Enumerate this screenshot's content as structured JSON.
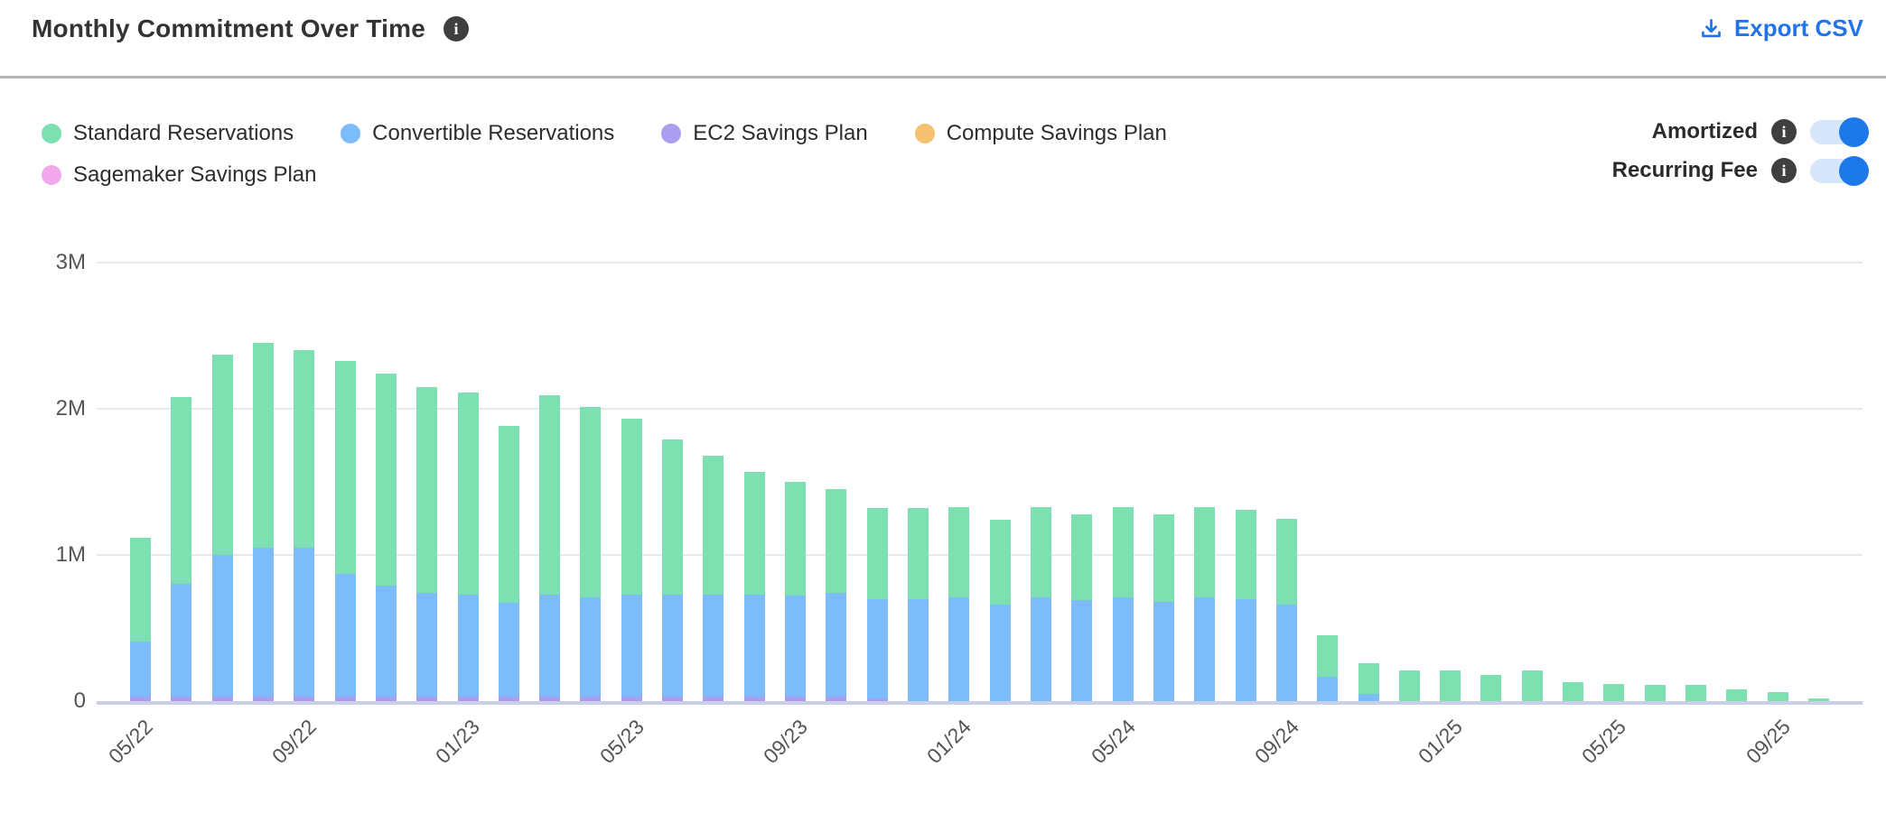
{
  "header": {
    "title": "Monthly Commitment Over Time",
    "title_info_icon": "i",
    "export_label": "Export CSV"
  },
  "colors": {
    "standard": "#7de0b1",
    "convertible": "#7dbcfb",
    "ec2_sp": "#ab9ef0",
    "compute_sp": "#f6c06e",
    "sagemaker_sp": "#f2a9ec",
    "accent_blue": "#2173e8",
    "toggle_track": "#d7e6fb",
    "toggle_knob": "#1d78e8",
    "gridline": "#e8e8e8",
    "zero_axis": "#c9cfe6"
  },
  "legend": {
    "items": [
      {
        "label": "Standard Reservations",
        "color": "#7de0b1"
      },
      {
        "label": "Convertible Reservations",
        "color": "#7dbcfb"
      },
      {
        "label": "EC2 Savings Plan",
        "color": "#ab9ef0"
      },
      {
        "label": "Compute Savings Plan",
        "color": "#f6c06e"
      },
      {
        "label": "Sagemaker Savings Plan",
        "color": "#f2a9ec"
      }
    ]
  },
  "toggles": [
    {
      "label": "Amortized",
      "state": "on"
    },
    {
      "label": "Recurring Fee",
      "state": "on"
    }
  ],
  "chart_data": {
    "type": "bar",
    "stacked": true,
    "unit": "millions",
    "ylim": [
      0,
      3000000
    ],
    "y_ticks": [
      "0",
      "1M",
      "2M",
      "3M"
    ],
    "grid": true,
    "x": [
      "05/22",
      "06/22",
      "07/22",
      "08/22",
      "09/22",
      "10/22",
      "11/22",
      "12/22",
      "01/23",
      "02/23",
      "03/23",
      "04/23",
      "05/23",
      "06/23",
      "07/23",
      "08/23",
      "09/23",
      "10/23",
      "11/23",
      "12/23",
      "01/24",
      "02/24",
      "03/24",
      "04/24",
      "05/24",
      "06/24",
      "07/24",
      "08/24",
      "09/24",
      "10/24",
      "11/24",
      "12/24",
      "01/25",
      "02/25",
      "03/25",
      "04/25",
      "05/25",
      "06/25",
      "07/25",
      "08/25",
      "09/25",
      "10/25"
    ],
    "x_tick_every": 4,
    "x_tick_labels": [
      "05/22",
      "09/22",
      "01/23",
      "05/23",
      "09/23",
      "01/24",
      "05/24",
      "09/24",
      "01/25",
      "05/25",
      "09/25"
    ],
    "series": [
      {
        "name": "Standard Reservations",
        "color": "#7de0b1",
        "values": [
          0.71,
          1.28,
          1.37,
          1.4,
          1.35,
          1.46,
          1.45,
          1.41,
          1.38,
          1.21,
          1.36,
          1.3,
          1.2,
          1.06,
          0.95,
          0.84,
          0.78,
          0.71,
          0.62,
          0.62,
          0.62,
          0.58,
          0.62,
          0.59,
          0.62,
          0.6,
          0.62,
          0.61,
          0.59,
          0.28,
          0.21,
          0.21,
          0.21,
          0.18,
          0.21,
          0.13,
          0.12,
          0.11,
          0.11,
          0.08,
          0.06,
          0.02
        ]
      },
      {
        "name": "Convertible Reservations",
        "color": "#7dbcfb",
        "values": [
          0.38,
          0.77,
          0.97,
          1.02,
          1.02,
          0.84,
          0.76,
          0.71,
          0.7,
          0.64,
          0.7,
          0.68,
          0.7,
          0.7,
          0.7,
          0.7,
          0.69,
          0.71,
          0.68,
          0.7,
          0.71,
          0.66,
          0.71,
          0.69,
          0.71,
          0.68,
          0.71,
          0.7,
          0.66,
          0.17,
          0.05,
          0,
          0,
          0,
          0,
          0,
          0,
          0,
          0,
          0,
          0,
          0
        ]
      },
      {
        "name": "EC2 Savings Plan",
        "color": "#ab9ef0",
        "values": [
          0.03,
          0.03,
          0.03,
          0.03,
          0.03,
          0.03,
          0.03,
          0.03,
          0.03,
          0.03,
          0.03,
          0.03,
          0.03,
          0.03,
          0.03,
          0.03,
          0.03,
          0.03,
          0.02,
          0,
          0,
          0,
          0,
          0,
          0,
          0,
          0,
          0,
          0,
          0,
          0,
          0,
          0,
          0,
          0,
          0,
          0,
          0,
          0,
          0,
          0,
          0
        ]
      },
      {
        "name": "Compute Savings Plan",
        "color": "#f6c06e",
        "values": [
          0,
          0,
          0,
          0,
          0,
          0,
          0,
          0,
          0,
          0,
          0,
          0,
          0,
          0,
          0,
          0,
          0,
          0,
          0,
          0,
          0,
          0,
          0,
          0,
          0,
          0,
          0,
          0,
          0,
          0,
          0,
          0,
          0,
          0,
          0,
          0,
          0,
          0,
          0,
          0,
          0,
          0
        ]
      },
      {
        "name": "Sagemaker Savings Plan",
        "color": "#f2a9ec",
        "values": [
          0,
          0,
          0,
          0,
          0,
          0,
          0,
          0,
          0,
          0,
          0,
          0,
          0,
          0,
          0,
          0,
          0,
          0,
          0,
          0,
          0,
          0,
          0,
          0,
          0,
          0,
          0,
          0,
          0,
          0,
          0,
          0,
          0,
          0,
          0,
          0,
          0,
          0,
          0,
          0,
          0,
          0
        ]
      }
    ]
  }
}
